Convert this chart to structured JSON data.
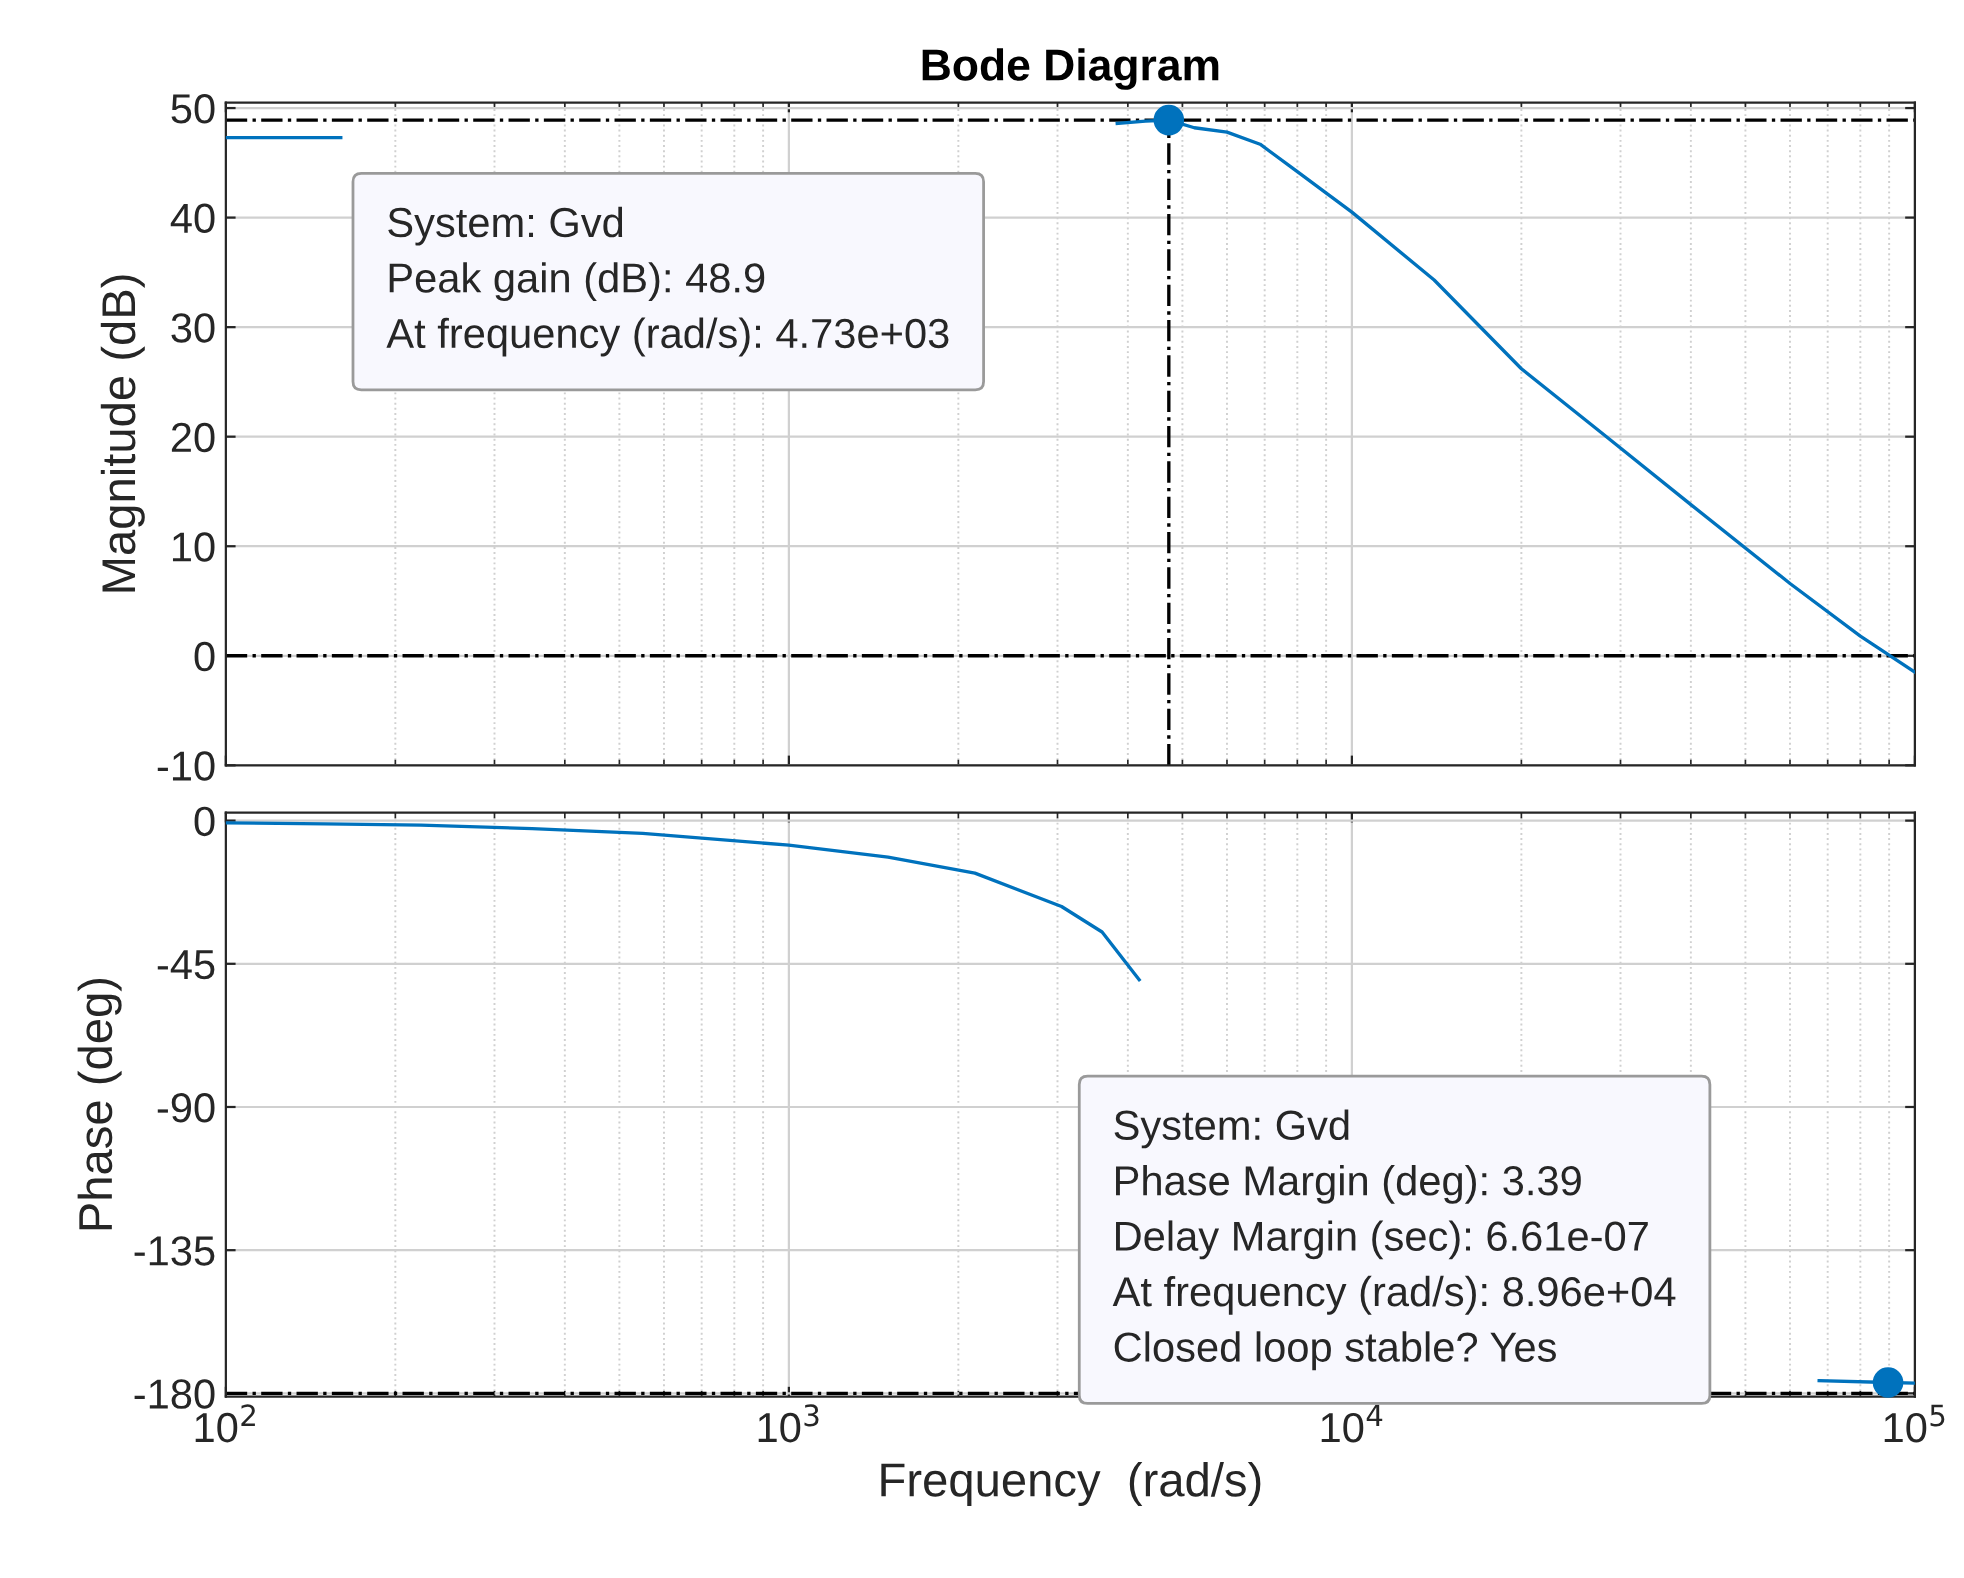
{
  "chart_data": [
    {
      "type": "line",
      "title": "Bode Diagram",
      "ylabel": "Magnitude (dB)",
      "log": "x",
      "grid": true,
      "tick_labels": "y",
      "xlim": [
        100,
        100000
      ],
      "xticks": [
        {
          "value": 100,
          "label": null
        },
        {
          "value": 1000,
          "label": null
        },
        {
          "value": 10000,
          "label": null
        },
        {
          "value": 100000,
          "label": null
        }
      ],
      "ylim": [
        -10,
        50.5
      ],
      "yticks": [
        -10,
        0,
        10,
        20,
        30,
        40,
        50
      ],
      "series": [
        {
          "color": "#0072bd",
          "x": [
            100,
            125,
            160,
            190,
            3830,
            4300,
            4730,
            5250,
            6000,
            6870,
            8000,
            10000,
            14000,
            20000,
            28000,
            40000,
            60000,
            80000,
            100000
          ],
          "values": [
            47.3,
            47.3,
            47.3,
            null,
            48.6,
            48.8,
            48.9,
            48.2,
            47.8,
            46.7,
            44.2,
            40.5,
            34.3,
            26.2,
            20.2,
            13.8,
            6.6,
            1.8,
            -1.5
          ]
        },
        {
          "type": "scatter",
          "color": "#0072bd",
          "marker": "circle",
          "x": [
            4730
          ],
          "values": [
            48.9
          ]
        }
      ],
      "ref_lines": [
        {
          "axis": "y",
          "value": 0,
          "line_style": "dashdot",
          "color": "#000000"
        },
        {
          "axis": "y",
          "value": 48.9,
          "line_style": "dashdot",
          "color": "#000000"
        },
        {
          "axis": "x",
          "value": 4730,
          "line_style": "dashdot",
          "color": "#000000"
        }
      ],
      "annotations": [
        "System: Gvd\nPeak gain (dB): 48.9\nAt frequency (rad/s): 4.73e+03"
      ]
    },
    {
      "type": "line",
      "xlabel": "Frequency  (rad/s)",
      "ylabel": "Phase (deg)",
      "log": "x",
      "grid": true,
      "xlim": [
        100,
        100000
      ],
      "xticks": [
        {
          "value": 100,
          "label": "10$^{2}$"
        },
        {
          "value": 1000,
          "label": "10$^{3}$"
        },
        {
          "value": 10000,
          "label": "10$^{4}$"
        },
        {
          "value": 100000,
          "label": "10$^{5}$"
        }
      ],
      "ylim": [
        -181,
        2.5
      ],
      "yticks": [
        -180,
        -135,
        -90,
        -45,
        0
      ],
      "series": [
        {
          "color": "#0072bd",
          "x": [
            100,
            150,
            222,
            350,
            550,
            1000,
            1500,
            2140,
            3050,
            3600,
            4190,
            4600,
            67600,
            89600,
            100000
          ],
          "values": [
            -0.7,
            -1,
            -1.4,
            -2.5,
            -4,
            -7.7,
            -11.5,
            -16.5,
            -27,
            -35,
            -50,
            null,
            -176,
            -176.6,
            -176.8
          ]
        },
        {
          "type": "scatter",
          "color": "#0072bd",
          "marker": "circle",
          "x": [
            89600
          ],
          "values": [
            -176.6
          ]
        }
      ],
      "ref_lines": [
        {
          "axis": "y",
          "value": -180,
          "line_style": "dashdot",
          "color": "#000000"
        }
      ],
      "annotations": [
        "System: Gvd\nPhase Margin (deg): 3.39\nDelay Margin (sec): 6.61e-07\nAt frequency (rad/s): 8.96e+04\nClosed loop stable? Yes"
      ]
    }
  ]
}
